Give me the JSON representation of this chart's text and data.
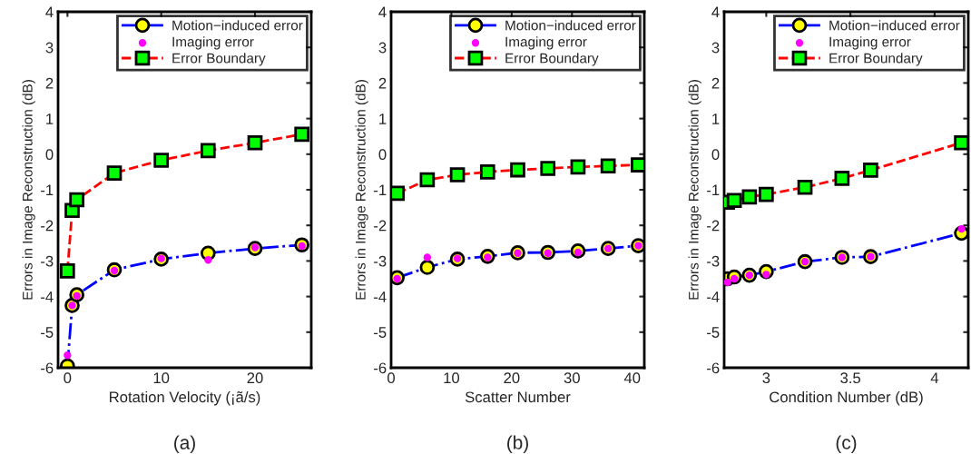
{
  "chart_data": [
    {
      "type": "line",
      "xlabel": "Rotation Velocity (¡ã/s)",
      "ylabel": "Errors in Image Reconstruction (dB)",
      "annotations": [
        "(a)"
      ],
      "xlim": [
        -1,
        26
      ],
      "xticks": [
        0,
        10,
        20
      ],
      "ylim": [
        -6,
        4
      ],
      "yticks": [
        -6,
        -5,
        -4,
        -3,
        -2,
        -1,
        0,
        1,
        2,
        3,
        4
      ],
      "grid": false,
      "legend": "top right",
      "x": [
        0,
        0.5,
        1,
        5,
        10,
        15,
        20,
        25
      ],
      "series": [
        {
          "name": "Motion−induced error",
          "color": "#0000ff",
          "marker": "circle",
          "line_style": "dashdot",
          "values": [
            -5.95,
            -4.25,
            -3.95,
            -3.25,
            -2.95,
            -2.78,
            -2.65,
            -2.55
          ]
        },
        {
          "name": "Imaging error",
          "type": "scatter",
          "color": "#ff00ff",
          "marker": "circle",
          "values": [
            -5.65,
            -4.25,
            -3.98,
            -3.27,
            -2.93,
            -2.97,
            -2.62,
            -2.58
          ]
        },
        {
          "name": "Error Boundary",
          "color": "#ff0000",
          "marker": "square",
          "line_style": "dashed",
          "values": [
            -3.28,
            -1.58,
            -1.28,
            -0.53,
            -0.17,
            0.1,
            0.32,
            0.56
          ]
        }
      ]
    },
    {
      "type": "line",
      "xlabel": "Scatter Number",
      "ylabel": "Errors in Image Reconstruction (dB)",
      "annotations": [
        "(b)"
      ],
      "xlim": [
        0,
        42
      ],
      "xticks": [
        0,
        10,
        20,
        30,
        40
      ],
      "ylim": [
        -6,
        4
      ],
      "yticks": [
        -6,
        -5,
        -4,
        -3,
        -2,
        -1,
        0,
        1,
        2,
        3,
        4
      ],
      "grid": false,
      "legend": "top right",
      "x": [
        1,
        6,
        11,
        16,
        21,
        26,
        31,
        36,
        41
      ],
      "series": [
        {
          "name": "Motion−induced error",
          "color": "#0000ff",
          "marker": "circle",
          "line_style": "dashdot",
          "values": [
            -3.47,
            -3.18,
            -2.95,
            -2.87,
            -2.77,
            -2.76,
            -2.72,
            -2.65,
            -2.57
          ]
        },
        {
          "name": "Imaging error",
          "type": "scatter",
          "color": "#ff00ff",
          "marker": "circle",
          "values": [
            -3.5,
            -2.9,
            -2.93,
            -2.9,
            -2.78,
            -2.78,
            -2.76,
            -2.65,
            -2.57
          ]
        },
        {
          "name": "Error Boundary",
          "color": "#ff0000",
          "marker": "square",
          "line_style": "dashed",
          "values": [
            -1.1,
            -0.72,
            -0.58,
            -0.5,
            -0.44,
            -0.4,
            -0.36,
            -0.33,
            -0.3
          ]
        }
      ]
    },
    {
      "type": "line",
      "xlabel": "Condition Number (dB)",
      "ylabel": "Errors in Image Reconstruction (dB)",
      "annotations": [
        "(c)"
      ],
      "xlim": [
        2.75,
        4.2
      ],
      "xticks": [
        3,
        3.5,
        4
      ],
      "ylim": [
        -6,
        4
      ],
      "yticks": [
        -6,
        -5,
        -4,
        -3,
        -2,
        -1,
        0,
        1,
        2,
        3,
        4
      ],
      "grid": false,
      "legend": "top right",
      "x": [
        2.77,
        2.81,
        2.9,
        3.0,
        3.23,
        3.45,
        3.62,
        4.16
      ],
      "series": [
        {
          "name": "Motion−induced error",
          "color": "#0000ff",
          "marker": "circle",
          "line_style": "dashdot",
          "values": [
            -3.5,
            -3.45,
            -3.4,
            -3.3,
            -3.02,
            -2.9,
            -2.88,
            -2.22
          ]
        },
        {
          "name": "Imaging error",
          "type": "scatter",
          "color": "#ff00ff",
          "marker": "circle",
          "values": [
            -3.6,
            -3.5,
            -3.4,
            -3.38,
            -3.02,
            -2.9,
            -2.88,
            -2.1
          ]
        },
        {
          "name": "Error Boundary",
          "color": "#ff0000",
          "marker": "square",
          "line_style": "dashed",
          "values": [
            -1.35,
            -1.3,
            -1.2,
            -1.13,
            -0.93,
            -0.68,
            -0.45,
            0.32
          ]
        }
      ]
    }
  ]
}
